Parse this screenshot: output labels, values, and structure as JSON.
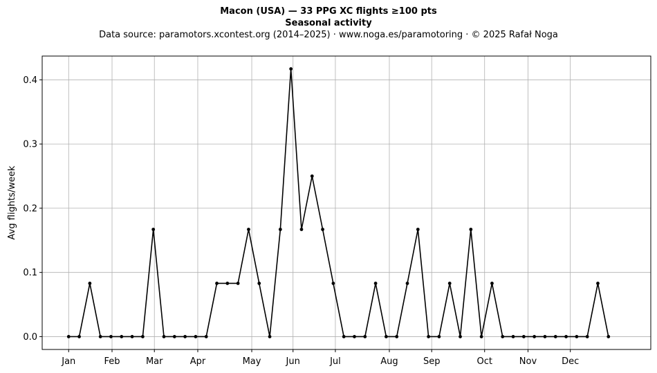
{
  "title": "Macon (USA)  —  33 PPG XC flights ≥100 pts",
  "subtitle": "Seasonal activity",
  "source": "Data source: paramotors.xcontest.org (2014–2025)  ·  www.noga.es/paramotoring  ·  © 2025 Rafał Noga",
  "chart_data": {
    "type": "line",
    "title": "Macon (USA)  —  33 PPG XC flights ≥100 pts",
    "subtitle": "Seasonal activity",
    "xlabel": "",
    "ylabel": "Avg flights/week",
    "x_unit": "week of year",
    "xlim": [
      -2.5,
      55
    ],
    "ylim": [
      -0.02,
      0.437
    ],
    "grid": true,
    "x_ticks": [
      {
        "label": "Jan",
        "x": 0
      },
      {
        "label": "Feb",
        "x": 4.1
      },
      {
        "label": "Mar",
        "x": 8.1
      },
      {
        "label": "Apr",
        "x": 12.2
      },
      {
        "label": "May",
        "x": 17.3
      },
      {
        "label": "Jun",
        "x": 21.2
      },
      {
        "label": "Jul",
        "x": 25.2
      },
      {
        "label": "Aug",
        "x": 30.3
      },
      {
        "label": "Sep",
        "x": 34.3
      },
      {
        "label": "Oct",
        "x": 39.3
      },
      {
        "label": "Nov",
        "x": 43.4
      },
      {
        "label": "Dec",
        "x": 47.4
      }
    ],
    "y_ticks": [
      0.0,
      0.1,
      0.2,
      0.3,
      0.4
    ],
    "series": [
      {
        "color": "#000000",
        "x": [
          0,
          1,
          2,
          3,
          4,
          5,
          6,
          7,
          8,
          9,
          10,
          11,
          12,
          13,
          14,
          15,
          16,
          17,
          18,
          19,
          20,
          21,
          22,
          23,
          24,
          25,
          26,
          27,
          28,
          29,
          30,
          31,
          32,
          33,
          34,
          35,
          36,
          37,
          38,
          39,
          40,
          41,
          42,
          43,
          44,
          45,
          46,
          47,
          48,
          49,
          50,
          51
        ],
        "y": [
          0,
          0,
          0.083,
          0,
          0,
          0,
          0,
          0,
          0.167,
          0,
          0,
          0,
          0,
          0,
          0.083,
          0.083,
          0.083,
          0.167,
          0.083,
          0,
          0.167,
          0.417,
          0.167,
          0.25,
          0.167,
          0.083,
          0,
          0,
          0,
          0.083,
          0,
          0,
          0.083,
          0.167,
          0,
          0,
          0.083,
          0,
          0.167,
          0,
          0.083,
          0,
          0,
          0,
          0,
          0,
          0,
          0,
          0,
          0,
          0.083,
          0
        ]
      }
    ]
  }
}
